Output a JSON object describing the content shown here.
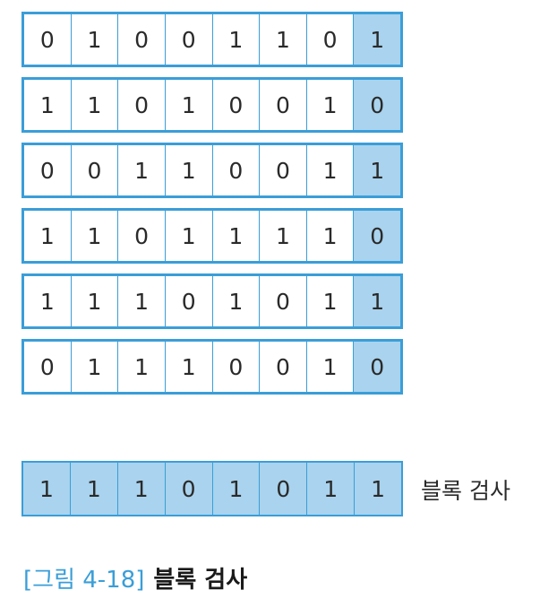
{
  "data_rows": [
    [
      "0",
      "1",
      "0",
      "0",
      "1",
      "1",
      "0",
      "1"
    ],
    [
      "1",
      "1",
      "0",
      "1",
      "0",
      "0",
      "1",
      "0"
    ],
    [
      "0",
      "0",
      "1",
      "1",
      "0",
      "0",
      "1",
      "1"
    ],
    [
      "1",
      "1",
      "0",
      "1",
      "1",
      "1",
      "1",
      "0"
    ],
    [
      "1",
      "1",
      "1",
      "0",
      "1",
      "0",
      "1",
      "1"
    ],
    [
      "0",
      "1",
      "1",
      "1",
      "0",
      "0",
      "1",
      "0"
    ]
  ],
  "check_row": [
    "1",
    "1",
    "1",
    "0",
    "1",
    "0",
    "1",
    "1"
  ],
  "check_label": "블록 검사",
  "caption": {
    "number": "[그림 4-18]",
    "title": "블록 검사"
  },
  "colors": {
    "border": "#3a9ed8",
    "highlight": "#a9d3ee"
  }
}
